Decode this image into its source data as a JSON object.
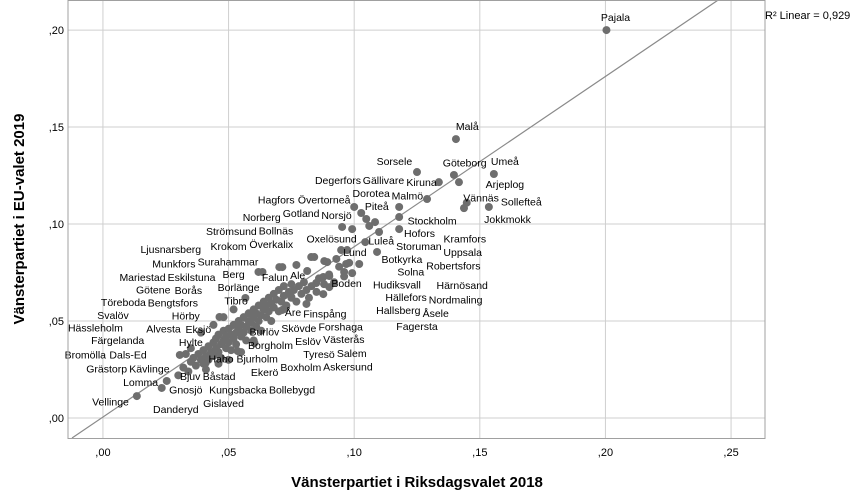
{
  "chart_data": {
    "type": "scatter",
    "title": "",
    "xlabel": "Vänsterpartiet i Riksdagsvalet 2018",
    "ylabel": "Vänsterpartiet i EU-valet 2019",
    "xlim": [
      -0.0139,
      0.2635
    ],
    "ylim": [
      -0.0103,
      0.2155
    ],
    "grid": true,
    "x_ticks": [
      0,
      0.05,
      0.1,
      0.15,
      0.2,
      0.25
    ],
    "x_tick_labels": [
      ",00",
      ",05",
      ",10",
      ",15",
      ",20",
      ",25"
    ],
    "y_ticks": [
      0,
      0.05,
      0.1,
      0.15,
      0.2
    ],
    "y_tick_labels": [
      ",00",
      ",05",
      ",10",
      ",15",
      ",20"
    ],
    "fit_line": {
      "slope": 0.878,
      "intercept": 0.0005,
      "label": "R² Linear = 0,929"
    },
    "colors": {
      "points": "#6e6e6e",
      "line": "#8a8a8a",
      "grid": "#cfcfcf"
    },
    "points": [
      [
        0.2004,
        0.2
      ],
      [
        0.1405,
        0.1438
      ],
      [
        0.125,
        0.1268
      ],
      [
        0.1397,
        0.1253
      ],
      [
        0.1417,
        0.1216
      ],
      [
        0.1337,
        0.1216
      ],
      [
        0.1556,
        0.1258
      ],
      [
        0.1437,
        0.1082
      ],
      [
        0.1448,
        0.111
      ],
      [
        0.129,
        0.1129
      ],
      [
        0.1536,
        0.1088
      ],
      [
        0.0135,
        0.0113
      ],
      [
        0.0234,
        0.0155
      ],
      [
        0.0254,
        0.0191
      ],
      [
        0.0306,
        0.0325
      ],
      [
        0.0409,
        0.0284
      ],
      [
        0.0536,
        0.0345
      ],
      [
        0.0603,
        0.0387
      ],
      [
        0.0635,
        0.0753
      ],
      [
        0.0714,
        0.0778
      ],
      [
        0.0722,
        0.0562
      ],
      [
        0.0464,
        0.0521
      ],
      [
        0.0567,
        0.0619
      ],
      [
        0.0841,
        0.083
      ],
      [
        0.0893,
        0.0804
      ],
      [
        0.0952,
        0.0985
      ],
      [
        0.0992,
        0.0974
      ],
      [
        0.1099,
        0.0959
      ],
      [
        0.1044,
        0.0907
      ],
      [
        0.1091,
        0.0856
      ],
      [
        0.0948,
        0.0866
      ],
      [
        0.0972,
        0.0866
      ],
      [
        0.0968,
        0.0794
      ],
      [
        0.102,
        0.0794
      ],
      [
        0.096,
        0.0753
      ],
      [
        0.0992,
        0.0747
      ],
      [
        0.0929,
        0.082
      ],
      [
        0.0881,
        0.0809
      ],
      [
        0.0829,
        0.083
      ],
      [
        0.077,
        0.0789
      ],
      [
        0.0702,
        0.0778
      ],
      [
        0.0619,
        0.0753
      ],
      [
        0.0813,
        0.0758
      ],
      [
        0.0901,
        0.0732
      ],
      [
        0.0877,
        0.0727
      ],
      [
        0.0901,
        0.0675
      ],
      [
        0.0849,
        0.0696
      ],
      [
        0.0877,
        0.0639
      ],
      [
        0.081,
        0.0588
      ],
      [
        0.075,
        0.0624
      ],
      [
        0.0714,
        0.0557
      ],
      [
        0.1,
        0.1088
      ],
      [
        0.1028,
        0.1057
      ],
      [
        0.1048,
        0.1026
      ],
      [
        0.106,
        0.099
      ],
      [
        0.1083,
        0.101
      ],
      [
        0.1179,
        0.0974
      ],
      [
        0.1179,
        0.1036
      ],
      [
        0.1179,
        0.1088
      ],
      [
        0.03,
        0.022
      ],
      [
        0.032,
        0.026
      ],
      [
        0.034,
        0.024
      ],
      [
        0.035,
        0.029
      ],
      [
        0.036,
        0.031
      ],
      [
        0.037,
        0.027
      ],
      [
        0.038,
        0.033
      ],
      [
        0.039,
        0.03
      ],
      [
        0.04,
        0.035
      ],
      [
        0.04,
        0.028
      ],
      [
        0.041,
        0.032
      ],
      [
        0.042,
        0.037
      ],
      [
        0.042,
        0.03
      ],
      [
        0.043,
        0.034
      ],
      [
        0.044,
        0.039
      ],
      [
        0.044,
        0.032
      ],
      [
        0.045,
        0.036
      ],
      [
        0.045,
        0.041
      ],
      [
        0.046,
        0.034
      ],
      [
        0.046,
        0.043
      ],
      [
        0.047,
        0.038
      ],
      [
        0.047,
        0.031
      ],
      [
        0.048,
        0.04
      ],
      [
        0.048,
        0.045
      ],
      [
        0.049,
        0.036
      ],
      [
        0.049,
        0.042
      ],
      [
        0.05,
        0.039
      ],
      [
        0.05,
        0.046
      ],
      [
        0.051,
        0.043
      ],
      [
        0.051,
        0.035
      ],
      [
        0.052,
        0.041
      ],
      [
        0.052,
        0.048
      ],
      [
        0.053,
        0.044
      ],
      [
        0.053,
        0.038
      ],
      [
        0.054,
        0.046
      ],
      [
        0.054,
        0.05
      ],
      [
        0.055,
        0.042
      ],
      [
        0.055,
        0.048
      ],
      [
        0.056,
        0.044
      ],
      [
        0.056,
        0.052
      ],
      [
        0.057,
        0.047
      ],
      [
        0.057,
        0.04
      ],
      [
        0.058,
        0.05
      ],
      [
        0.058,
        0.054
      ],
      [
        0.059,
        0.045
      ],
      [
        0.059,
        0.049
      ],
      [
        0.06,
        0.052
      ],
      [
        0.06,
        0.056
      ],
      [
        0.061,
        0.047
      ],
      [
        0.061,
        0.054
      ],
      [
        0.062,
        0.05
      ],
      [
        0.062,
        0.058
      ],
      [
        0.063,
        0.053
      ],
      [
        0.063,
        0.045
      ],
      [
        0.064,
        0.056
      ],
      [
        0.064,
        0.06
      ],
      [
        0.065,
        0.052
      ],
      [
        0.065,
        0.058
      ],
      [
        0.066,
        0.055
      ],
      [
        0.066,
        0.062
      ],
      [
        0.067,
        0.05
      ],
      [
        0.067,
        0.059
      ],
      [
        0.068,
        0.057
      ],
      [
        0.068,
        0.064
      ],
      [
        0.069,
        0.061
      ],
      [
        0.07,
        0.055
      ],
      [
        0.07,
        0.066
      ],
      [
        0.071,
        0.06
      ],
      [
        0.072,
        0.063
      ],
      [
        0.072,
        0.068
      ],
      [
        0.073,
        0.058
      ],
      [
        0.074,
        0.065
      ],
      [
        0.075,
        0.062
      ],
      [
        0.075,
        0.069
      ],
      [
        0.076,
        0.066
      ],
      [
        0.077,
        0.06
      ],
      [
        0.078,
        0.068
      ],
      [
        0.079,
        0.064
      ],
      [
        0.08,
        0.07
      ],
      [
        0.081,
        0.066
      ],
      [
        0.082,
        0.062
      ],
      [
        0.083,
        0.068
      ],
      [
        0.085,
        0.065
      ],
      [
        0.086,
        0.072
      ],
      [
        0.088,
        0.069
      ],
      [
        0.09,
        0.074
      ],
      [
        0.092,
        0.07
      ],
      [
        0.094,
        0.078
      ],
      [
        0.096,
        0.073
      ],
      [
        0.098,
        0.08
      ],
      [
        0.044,
        0.048
      ],
      [
        0.048,
        0.052
      ],
      [
        0.052,
        0.056
      ],
      [
        0.046,
        0.028
      ],
      [
        0.041,
        0.025
      ],
      [
        0.05,
        0.03
      ],
      [
        0.055,
        0.034
      ],
      [
        0.06,
        0.04
      ],
      [
        0.039,
        0.044
      ],
      [
        0.035,
        0.036
      ],
      [
        0.033,
        0.033
      ]
    ],
    "annotations": [
      {
        "text": "Pajala",
        "x": 0.204,
        "y": 0.206
      },
      {
        "text": "Malå",
        "x": 0.145,
        "y": 0.15
      },
      {
        "text": "Sorsele",
        "x": 0.116,
        "y": 0.132
      },
      {
        "text": "Göteborg",
        "x": 0.144,
        "y": 0.131
      },
      {
        "text": "Umeå",
        "x": 0.16,
        "y": 0.132
      },
      {
        "text": "Degerfors",
        "x": 0.095,
        "y": 0.122
      },
      {
        "text": "Gällivare",
        "x": 0.112,
        "y": 0.122
      },
      {
        "text": "Kiruna",
        "x": 0.125,
        "y": 0.121
      },
      {
        "text": "Arjeplog",
        "x": 0.16,
        "y": 0.12
      },
      {
        "text": "Hagfors",
        "x": 0.069,
        "y": 0.112
      },
      {
        "text": "Övertorneå",
        "x": 0.09,
        "y": 0.112
      },
      {
        "text": "Dorotea",
        "x": 0.106,
        "y": 0.115
      },
      {
        "text": "Malmö",
        "x": 0.12,
        "y": 0.114
      },
      {
        "text": "Vännäs",
        "x": 0.152,
        "y": 0.113
      },
      {
        "text": "Piteå",
        "x": 0.109,
        "y": 0.109
      },
      {
        "text": "Sollefteå",
        "x": 0.165,
        "y": 0.111
      },
      {
        "text": "Norberg",
        "x": 0.064,
        "y": 0.103
      },
      {
        "text": "Gotland",
        "x": 0.079,
        "y": 0.105
      },
      {
        "text": "Norsjö",
        "x": 0.092,
        "y": 0.104
      },
      {
        "text": "Jokkmokk",
        "x": 0.161,
        "y": 0.102
      },
      {
        "text": "Stockholm",
        "x": 0.131,
        "y": 0.099
      },
      {
        "text": "Strömsund",
        "x": 0.054,
        "y": 0.095
      },
      {
        "text": "Bollnäs",
        "x": 0.066,
        "y": 0.096
      },
      {
        "text": "Hofors",
        "x": 0.126,
        "y": 0.096
      },
      {
        "text": "Oxelösund",
        "x": 0.091,
        "y": 0.092
      },
      {
        "text": "Luleå",
        "x": 0.112,
        "y": 0.091
      },
      {
        "text": "Kramfors",
        "x": 0.143,
        "y": 0.092
      },
      {
        "text": "Krokom",
        "x": 0.05,
        "y": 0.088
      },
      {
        "text": "Överkalix",
        "x": 0.067,
        "y": 0.09
      },
      {
        "text": "Ljusnarsberg",
        "x": 0.027,
        "y": 0.086
      },
      {
        "text": "Storuman",
        "x": 0.125,
        "y": 0.089
      },
      {
        "text": "Lund",
        "x": 0.101,
        "y": 0.085
      },
      {
        "text": "Uppsala",
        "x": 0.143,
        "y": 0.085
      },
      {
        "text": "Surahammar",
        "x": 0.049,
        "y": 0.08
      },
      {
        "text": "Botkyrka",
        "x": 0.119,
        "y": 0.081
      },
      {
        "text": "Robertsfors",
        "x": 0.139,
        "y": 0.078
      },
      {
        "text": "Munkfors",
        "x": 0.029,
        "y": 0.079
      },
      {
        "text": "Berg",
        "x": 0.052,
        "y": 0.074
      },
      {
        "text": "Falun",
        "x": 0.069,
        "y": 0.072
      },
      {
        "text": "Ale",
        "x": 0.077,
        "y": 0.073
      },
      {
        "text": "Solna",
        "x": 0.123,
        "y": 0.074
      },
      {
        "text": "Mariestad",
        "x": 0.016,
        "y": 0.072
      },
      {
        "text": "Eskilstuna",
        "x": 0.035,
        "y": 0.072
      },
      {
        "text": "Boden",
        "x": 0.097,
        "y": 0.069
      },
      {
        "text": "Hudiksvall",
        "x": 0.117,
        "y": 0.069
      },
      {
        "text": "Härnösand",
        "x": 0.143,
        "y": 0.068
      },
      {
        "text": "Borlänge",
        "x": 0.054,
        "y": 0.067
      },
      {
        "text": "Götene",
        "x": 0.02,
        "y": 0.065
      },
      {
        "text": "Borås",
        "x": 0.034,
        "y": 0.065
      },
      {
        "text": "Hällefors",
        "x": 0.123,
        "y": 0.062
      },
      {
        "text": "Nordmaling",
        "x": 0.138,
        "y": 0.06
      },
      {
        "text": "Töreboda",
        "x": 0.011,
        "y": 0.059
      },
      {
        "text": "Bengtsfors",
        "x": 0.025,
        "y": 0.058
      },
      {
        "text": "Tibro",
        "x": 0.053,
        "y": 0.06
      },
      {
        "text": "Hallsberg",
        "x": 0.12,
        "y": 0.055
      },
      {
        "text": "Åsele",
        "x": 0.13,
        "y": 0.053
      },
      {
        "text": "Svalöv",
        "x": 0.004,
        "y": 0.053
      },
      {
        "text": "Hörby",
        "x": 0.033,
        "y": 0.052
      },
      {
        "text": "Åre",
        "x": 0.076,
        "y": 0.054
      },
      {
        "text": "Finspång",
        "x": 0.088,
        "y": 0.053
      },
      {
        "text": "Alvesta",
        "x": 0.024,
        "y": 0.047
      },
      {
        "text": "Hässleholm",
        "x": -0.003,
        "y": 0.046
      },
      {
        "text": "Eksjö",
        "x": 0.038,
        "y": 0.045
      },
      {
        "text": "Forshaga",
        "x": 0.093,
        "y": 0.047
      },
      {
        "text": "Fagersta",
        "x": 0.125,
        "y": 0.048
      },
      {
        "text": "Burlöv",
        "x": 0.065,
        "y": 0.044
      },
      {
        "text": "Skövde",
        "x": 0.079,
        "y": 0.045
      },
      {
        "text": "Färgelanda",
        "x": 0.006,
        "y": 0.04
      },
      {
        "text": "Hylte",
        "x": 0.035,
        "y": 0.039
      },
      {
        "text": "Eslöv",
        "x": 0.08,
        "y": 0.04
      },
      {
        "text": "Västerås",
        "x": 0.094,
        "y": 0.04
      },
      {
        "text": "Borgholm",
        "x": 0.07,
        "y": 0.037
      },
      {
        "text": "Bromölla",
        "x": -0.007,
        "y": 0.032
      },
      {
        "text": "Dals-Ed",
        "x": 0.01,
        "y": 0.032
      },
      {
        "text": "Tyresö",
        "x": 0.087,
        "y": 0.032
      },
      {
        "text": "Salem",
        "x": 0.098,
        "y": 0.033
      },
      {
        "text": "Habo",
        "x": 0.047,
        "y": 0.03
      },
      {
        "text": "Bjurholm",
        "x": 0.063,
        "y": 0.03
      },
      {
        "text": "Grästorp",
        "x": 0.002,
        "y": 0.025
      },
      {
        "text": "Kävlinge",
        "x": 0.018,
        "y": 0.025
      },
      {
        "text": "Ekerö",
        "x": 0.065,
        "y": 0.023
      },
      {
        "text": "Boxholm",
        "x": 0.08,
        "y": 0.026
      },
      {
        "text": "Askersund",
        "x": 0.094,
        "y": 0.026
      },
      {
        "text": "Bjuv",
        "x": 0.035,
        "y": 0.021
      },
      {
        "text": "Båstad",
        "x": 0.046,
        "y": 0.021
      },
      {
        "text": "Lomma",
        "x": 0.015,
        "y": 0.018
      },
      {
        "text": "Gnosjö",
        "x": 0.033,
        "y": 0.014
      },
      {
        "text": "Kungsbacka",
        "x": 0.054,
        "y": 0.014
      },
      {
        "text": "Bollebygd",
        "x": 0.075,
        "y": 0.014
      },
      {
        "text": "Vellinge",
        "x": 0.003,
        "y": 0.008
      },
      {
        "text": "Gislaved",
        "x": 0.048,
        "y": 0.007
      },
      {
        "text": "Danderyd",
        "x": 0.029,
        "y": 0.004
      }
    ]
  }
}
